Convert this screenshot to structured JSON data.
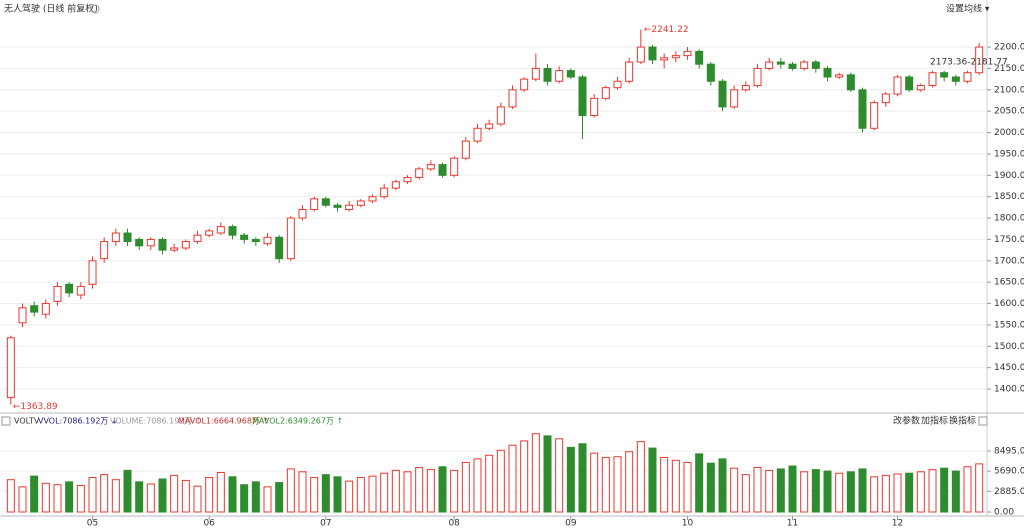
{
  "chart_data": {
    "type": "candlestick",
    "title": "无人驾驶 (日线 前复权)",
    "menu": "设置均线 ▾",
    "categories": [
      null,
      null,
      null,
      null,
      null,
      null,
      null,
      "05",
      null,
      null,
      null,
      null,
      null,
      null,
      null,
      null,
      null,
      "06",
      null,
      null,
      null,
      null,
      null,
      null,
      null,
      null,
      null,
      "07",
      null,
      null,
      null,
      null,
      null,
      null,
      null,
      null,
      null,
      null,
      "08",
      null,
      null,
      null,
      null,
      null,
      null,
      null,
      null,
      null,
      "09",
      null,
      null,
      null,
      null,
      null,
      null,
      null,
      null,
      null,
      "10",
      null,
      null,
      null,
      null,
      null,
      null,
      null,
      null,
      "11",
      null,
      null,
      null,
      null,
      null,
      null,
      null,
      null,
      "12",
      null,
      null,
      null,
      null,
      null,
      null,
      null
    ],
    "open": [
      1380,
      1555,
      1595,
      1575,
      1605,
      1645,
      1620,
      1645,
      1705,
      1745,
      1765,
      1750,
      1735,
      1750,
      1725,
      1730,
      1745,
      1760,
      1765,
      1780,
      1760,
      1750,
      1740,
      1755,
      1705,
      1800,
      1820,
      1845,
      1830,
      1820,
      1830,
      1840,
      1850,
      1870,
      1885,
      1895,
      1915,
      1925,
      1900,
      1940,
      1980,
      2010,
      2020,
      2060,
      2100,
      2125,
      2150,
      2120,
      2145,
      2130,
      2040,
      2080,
      2105,
      2120,
      2165,
      2200,
      2170,
      2175,
      2180,
      2190,
      2160,
      2120,
      2060,
      2100,
      2110,
      2150,
      2165,
      2160,
      2150,
      2165,
      2150,
      2130,
      2135,
      2100,
      2010,
      2070,
      2090,
      2130,
      2100,
      2110,
      2140,
      2130,
      2120,
      2140
    ],
    "high": [
      1525,
      1600,
      1605,
      1610,
      1650,
      1650,
      1650,
      1710,
      1755,
      1775,
      1775,
      1755,
      1755,
      1755,
      1740,
      1750,
      1770,
      1775,
      1790,
      1785,
      1765,
      1755,
      1765,
      1760,
      1805,
      1830,
      1850,
      1850,
      1835,
      1840,
      1845,
      1855,
      1880,
      1890,
      1900,
      1920,
      1935,
      1930,
      1945,
      1990,
      2020,
      2030,
      2070,
      2110,
      2130,
      2185,
      2160,
      2155,
      2150,
      2135,
      2090,
      2110,
      2130,
      2175,
      2241.22,
      2205,
      2185,
      2190,
      2200,
      2195,
      2165,
      2125,
      2110,
      2120,
      2160,
      2175,
      2175,
      2165,
      2170,
      2170,
      2155,
      2140,
      2140,
      2105,
      2075,
      2095,
      2135,
      2135,
      2115,
      2145,
      2145,
      2135,
      2145,
      2210
    ],
    "low": [
      1363.89,
      1545,
      1570,
      1565,
      1595,
      1615,
      1610,
      1635,
      1695,
      1735,
      1735,
      1725,
      1725,
      1715,
      1720,
      1725,
      1740,
      1755,
      1760,
      1750,
      1740,
      1735,
      1735,
      1695,
      1700,
      1795,
      1815,
      1825,
      1815,
      1815,
      1825,
      1835,
      1845,
      1865,
      1880,
      1890,
      1910,
      1895,
      1895,
      1935,
      1975,
      2005,
      2015,
      2055,
      2095,
      2120,
      2110,
      2115,
      2125,
      1985,
      2035,
      2075,
      2100,
      2115,
      2160,
      2160,
      2150,
      2165,
      2170,
      2150,
      2110,
      2050,
      2055,
      2095,
      2105,
      2145,
      2150,
      2145,
      2145,
      2140,
      2120,
      2125,
      2095,
      2000,
      2005,
      2060,
      2085,
      2095,
      2095,
      2105,
      2120,
      2110,
      2115,
      2135
    ],
    "close": [
      1520,
      1590,
      1580,
      1600,
      1640,
      1625,
      1640,
      1700,
      1745,
      1765,
      1745,
      1735,
      1750,
      1725,
      1730,
      1745,
      1760,
      1770,
      1780,
      1760,
      1750,
      1745,
      1755,
      1705,
      1800,
      1820,
      1845,
      1830,
      1825,
      1830,
      1840,
      1850,
      1870,
      1885,
      1895,
      1915,
      1925,
      1900,
      1940,
      1980,
      2010,
      2020,
      2060,
      2100,
      2125,
      2150,
      2120,
      2145,
      2130,
      2040,
      2080,
      2105,
      2120,
      2165,
      2200,
      2170,
      2175,
      2180,
      2190,
      2160,
      2120,
      2060,
      2100,
      2110,
      2150,
      2165,
      2160,
      2150,
      2165,
      2150,
      2130,
      2135,
      2100,
      2010,
      2070,
      2090,
      2130,
      2100,
      2110,
      2140,
      2130,
      2120,
      2140,
      2200
    ],
    "volume": [
      4500,
      3500,
      5000,
      4000,
      3800,
      4200,
      3700,
      4800,
      5200,
      4500,
      5800,
      4200,
      3900,
      4600,
      5100,
      4400,
      3600,
      4800,
      5500,
      4900,
      3800,
      4200,
      3500,
      4100,
      6000,
      5600,
      4800,
      5200,
      4900,
      4300,
      4800,
      5000,
      5400,
      5800,
      5600,
      6200,
      5900,
      6300,
      5800,
      6900,
      7400,
      7900,
      8600,
      9300,
      9900,
      10900,
      10600,
      10200,
      9000,
      9500,
      8200,
      7600,
      7700,
      8400,
      9800,
      8900,
      7600,
      7200,
      6900,
      8100,
      6800,
      7400,
      6100,
      5200,
      6200,
      5800,
      6000,
      6400,
      5600,
      5900,
      5700,
      5400,
      5600,
      6000,
      4900,
      5100,
      5300,
      5400,
      5600,
      5900,
      6100,
      5700,
      6300,
      6700
    ],
    "up_color": "#e8382f",
    "down_color": "#2e8b2e",
    "ylim": [
      1351,
      2275
    ],
    "yticks": [
      {
        "value": 1400,
        "label": "1400.00"
      },
      {
        "value": 1450,
        "label": "1450.00"
      },
      {
        "value": 1500,
        "label": "1500.00"
      },
      {
        "value": 1550,
        "label": "1550.00"
      },
      {
        "value": 1600,
        "label": "1600.00"
      },
      {
        "value": 1650,
        "label": "1650.00"
      },
      {
        "value": 1700,
        "label": "1700.00"
      },
      {
        "value": 1750,
        "label": "1750.00"
      },
      {
        "value": 1800,
        "label": "1800.00"
      },
      {
        "value": 1850,
        "label": "1850.00"
      },
      {
        "value": 1900,
        "label": "1900.00"
      },
      {
        "value": 1950,
        "label": "1950.00"
      },
      {
        "value": 2000,
        "label": "2000.00"
      },
      {
        "value": 2050,
        "label": "2050.00"
      },
      {
        "value": 2100,
        "label": "2100.00"
      },
      {
        "value": 2150,
        "label": "2150.00"
      },
      {
        "value": 2200,
        "label": "2200.00"
      }
    ],
    "y2lim": [
      0,
      11700
    ],
    "y2ticks": [
      {
        "value": 0,
        "label": "0.00"
      },
      {
        "value": 2885,
        "label": "2885.00"
      },
      {
        "value": 5690,
        "label": "5690.00"
      },
      {
        "value": 8495,
        "label": "8495.00"
      }
    ],
    "grid": true,
    "annotations": [
      "←1363.89",
      "←2241.22",
      "2173.36-2181.77"
    ],
    "volume_header": [
      "VOLTV",
      "VVOL:7086.192万 ↓",
      "VOLUME:7086.192万 ↑",
      "MAVOL1:6664.968万 ↑",
      "MAVOL2:6349.267万 ↑"
    ],
    "volume_tools": [
      "改参数",
      "加指标",
      "换指标"
    ]
  }
}
